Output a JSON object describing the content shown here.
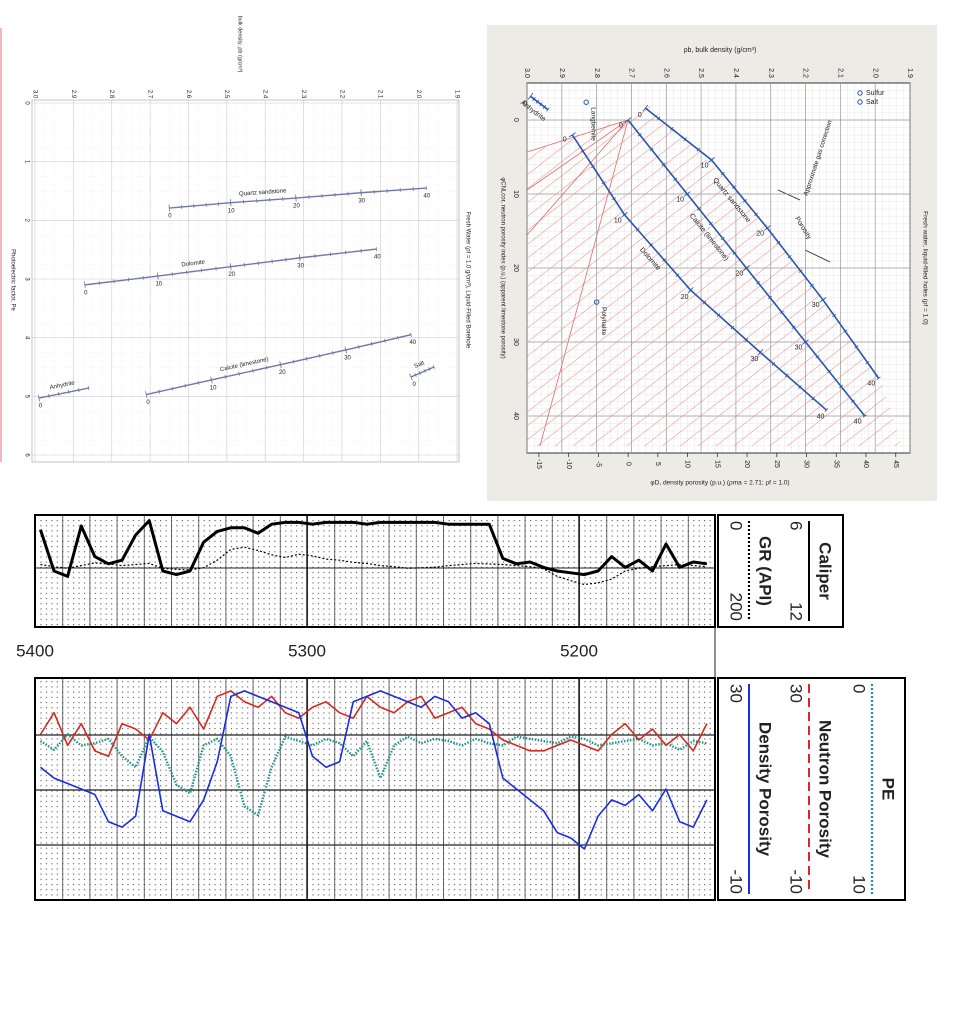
{
  "chart_data": [
    {
      "type": "line",
      "xlabel": "bulk density, ρb (g/cm³)",
      "ylabel": "Photoelectric factor, Pe",
      "annotation": "Fresh Water (ρf = 1.0 g/cm³), Liquid-Filled Borehole",
      "xlim": [
        3.0,
        1.9
      ],
      "xticks": [
        {
          "value": 3.0,
          "label": "3.0"
        },
        2.9,
        2.8,
        2.7,
        2.6,
        2.5,
        2.4,
        2.3,
        2.2,
        2.1,
        {
          "value": 2.0,
          "label": "2.0"
        },
        1.9
      ],
      "ylim": [
        0,
        6
      ],
      "yticks": [
        0,
        1,
        2,
        3,
        4,
        5,
        6
      ],
      "grid": true,
      "series": [
        {
          "name": "Quartz sandstone",
          "color": "#6f78a8",
          "x": [
            2.65,
            2.49,
            2.32,
            2.15,
            1.98
          ],
          "values": [
            1.79,
            1.7,
            1.62,
            1.53,
            1.45
          ],
          "porosity": [
            0,
            10,
            20,
            30,
            40
          ]
        },
        {
          "name": "Dolomite",
          "color": "#6f78a8",
          "x": [
            2.87,
            2.68,
            2.49,
            2.31,
            2.11
          ],
          "values": [
            3.1,
            2.95,
            2.79,
            2.64,
            2.49
          ],
          "porosity": [
            0,
            10,
            20,
            30,
            40
          ]
        },
        {
          "name": "Calcite (limestone)",
          "color": "#6f78a8",
          "x": [
            2.71,
            2.54,
            2.36,
            2.19,
            2.02
          ],
          "values": [
            4.97,
            4.72,
            4.46,
            4.21,
            3.95
          ],
          "porosity": [
            0,
            10,
            20,
            30,
            40
          ]
        },
        {
          "name": "Anhydrite",
          "color": "#6f78a8",
          "x": [
            2.99,
            2.86
          ],
          "values": [
            5.03,
            4.86
          ],
          "porosity": [
            0,
            null
          ]
        },
        {
          "name": "Salt",
          "color": "#6f78a8",
          "x": [
            2.02,
            1.96
          ],
          "values": [
            4.67,
            4.5
          ],
          "porosity": [
            0,
            null
          ]
        }
      ]
    },
    {
      "type": "crossplot",
      "xlabel": "ρb, bulk density (g/cm³)",
      "x2label": "φD, density porosity (p.u.) (ρma = 2.71; ρf = 1.0)",
      "ylabel": "φCNLcor, neutron porosity index (p.u.) (apparent limestone porosity)",
      "annotation": "Fresh water, liquid-filled holes (ρf = 1.0)",
      "xlim": [
        3.0,
        1.9
      ],
      "xticks": [
        {
          "value": 3.0,
          "label": "3.0"
        },
        2.9,
        2.8,
        2.7,
        2.6,
        2.5,
        2.4,
        2.3,
        2.2,
        2.1,
        {
          "value": 2.0,
          "label": "2.0"
        },
        1.9
      ],
      "x2lim": [
        -17,
        47.4
      ],
      "x2ticks": [
        -15,
        -10,
        -5,
        0,
        5,
        10,
        15,
        20,
        25,
        30,
        35,
        40,
        45
      ],
      "ylim": [
        -5,
        45
      ],
      "yticks": [
        0,
        10,
        20,
        30,
        40
      ],
      "grid": true,
      "series": [
        {
          "name": "Quartz sandstone",
          "color": "#2b56a8",
          "x": [
            2.66,
            2.47,
            2.31,
            2.15,
            1.99
          ],
          "values": [
            -1.6,
            5.4,
            14.6,
            24.3,
            34.9
          ],
          "porosity": [
            0,
            10,
            20,
            30,
            40
          ]
        },
        {
          "name": "Calcite (limestone)",
          "color": "#2b56a8",
          "x": [
            2.71,
            2.54,
            2.37,
            2.2,
            2.03
          ],
          "values": [
            0,
            10,
            20,
            30,
            40
          ],
          "porosity": [
            0,
            10,
            20,
            30,
            40
          ]
        },
        {
          "name": "Dolomite",
          "color": "#2b56a8",
          "x": [
            2.87,
            2.72,
            2.53,
            2.33,
            2.14
          ],
          "values": [
            2.0,
            12.8,
            23.0,
            31.4,
            39.2
          ],
          "porosity": [
            0,
            10,
            20,
            30,
            40
          ]
        },
        {
          "name": "Anhydrite",
          "color": "#2b56a8",
          "x": [
            2.99,
            2.94
          ],
          "values": [
            -3.2,
            -1.4
          ],
          "porosity": [
            0,
            null
          ]
        }
      ],
      "points": [
        {
          "name": "Langbeinite",
          "color": "#2b56a8",
          "x": [
            2.83
          ],
          "values": [
            -2.4
          ]
        },
        {
          "name": "Polyhalite",
          "color": "#2b56a8",
          "x": [
            2.8
          ],
          "values": [
            24.6
          ]
        }
      ],
      "legend": [
        {
          "name": "Sulfur",
          "color": "#2b56a8"
        },
        {
          "name": "Salt",
          "color": "#2b56a8"
        }
      ],
      "annotations": [
        "Porosity",
        "Approximate gas correction"
      ]
    },
    {
      "type": "well-log",
      "x": [
        5398,
        5393,
        5388,
        5383,
        5378,
        5373,
        5368,
        5363,
        5358,
        5353,
        5348,
        5343,
        5338,
        5333,
        5328,
        5323,
        5318,
        5313,
        5308,
        5303,
        5298,
        5293,
        5288,
        5283,
        5278,
        5273,
        5268,
        5263,
        5258,
        5253,
        5248,
        5243,
        5238,
        5233,
        5228,
        5223,
        5218,
        5213,
        5208,
        5203,
        5198,
        5193,
        5188,
        5183,
        5178,
        5173,
        5168,
        5163,
        5158,
        5153
      ],
      "xlim": [
        5400,
        5150
      ],
      "xticks": [
        5400,
        5300,
        5200
      ],
      "tracks": [
        {
          "series": [
            {
              "name": "Caliper",
              "color": "#000000",
              "style": "solid",
              "scale": [
                6,
                12
              ],
              "values": [
                6.7,
                9.0,
                9.3,
                6.5,
                8.2,
                8.6,
                8.4,
                7.0,
                6.2,
                9.0,
                9.2,
                9.0,
                7.4,
                6.8,
                6.6,
                6.6,
                6.9,
                6.4,
                6.3,
                6.3,
                6.4,
                6.3,
                6.3,
                6.3,
                6.4,
                6.3,
                6.3,
                6.3,
                6.3,
                6.3,
                6.4,
                6.4,
                6.4,
                6.4,
                8.3,
                8.6,
                8.5,
                8.8,
                9.0,
                9.1,
                9.2,
                9.0,
                8.2,
                8.8,
                8.4,
                9.0,
                7.5,
                8.8,
                8.5,
                8.6
              ]
            },
            {
              "name": "GR (API)",
              "color": "#000000",
              "style": "dotted",
              "scale": [
                0,
                200
              ],
              "values": [
                88,
                92,
                95,
                90,
                85,
                87,
                90,
                88,
                86,
                95,
                97,
                98,
                94,
                80,
                60,
                56,
                62,
                70,
                75,
                69,
                72,
                78,
                80,
                84,
                86,
                90,
                92,
                95,
                94,
                93,
                90,
                88,
                86,
                87,
                88,
                90,
                92,
                96,
                110,
                118,
                125,
                122,
                115,
                100,
                95,
                92,
                90,
                88,
                90,
                92
              ]
            }
          ]
        },
        {
          "series": [
            {
              "name": "PE",
              "color": "#1f9488",
              "style": "dotted",
              "scale": [
                0,
                10
              ],
              "values": [
                2.8,
                3.2,
                2.5,
                3.0,
                2.9,
                2.7,
                3.5,
                4.0,
                2.6,
                3.3,
                4.8,
                5.2,
                3.0,
                2.7,
                3.5,
                5.8,
                6.2,
                4.0,
                2.6,
                2.8,
                3.0,
                2.7,
                2.9,
                3.5,
                2.8,
                4.5,
                3.0,
                2.6,
                2.9,
                2.7,
                2.8,
                3.0,
                2.7,
                2.9,
                3.0,
                2.6,
                2.7,
                2.8,
                2.9,
                2.6,
                2.7,
                3.0,
                2.9,
                2.8,
                2.7,
                3.0,
                2.9,
                3.2,
                2.8,
                2.9
              ]
            },
            {
              "name": "Neutron Porosity",
              "color": "#d42a20",
              "style": "dashed",
              "scale": [
                30,
                -10
              ],
              "values": [
                20,
                24,
                18,
                22,
                17,
                16,
                22,
                21,
                19,
                24,
                22,
                25,
                21,
                27,
                28,
                26,
                25,
                27,
                24,
                23,
                25,
                26,
                24,
                23,
                27,
                25,
                24,
                26,
                27,
                23,
                24,
                25,
                22,
                21,
                19,
                18,
                17,
                17,
                18,
                19,
                18,
                17,
                20,
                22,
                19,
                21,
                18,
                20,
                17,
                22
              ]
            },
            {
              "name": "Density Porosity",
              "color": "#1a2ee0",
              "style": "solid",
              "scale": [
                30,
                -10
              ],
              "values": [
                14,
                12,
                11,
                10,
                9,
                4,
                3,
                5,
                20,
                6,
                5,
                4,
                8,
                15,
                27,
                28,
                27,
                26,
                25,
                24,
                16,
                14,
                15,
                26,
                27,
                28,
                27,
                26,
                25,
                27,
                26,
                23,
                24,
                22,
                12,
                10,
                8,
                6,
                2,
                1,
                -1,
                5,
                8,
                7,
                9,
                6,
                10,
                4,
                3,
                8
              ]
            }
          ]
        }
      ]
    }
  ]
}
